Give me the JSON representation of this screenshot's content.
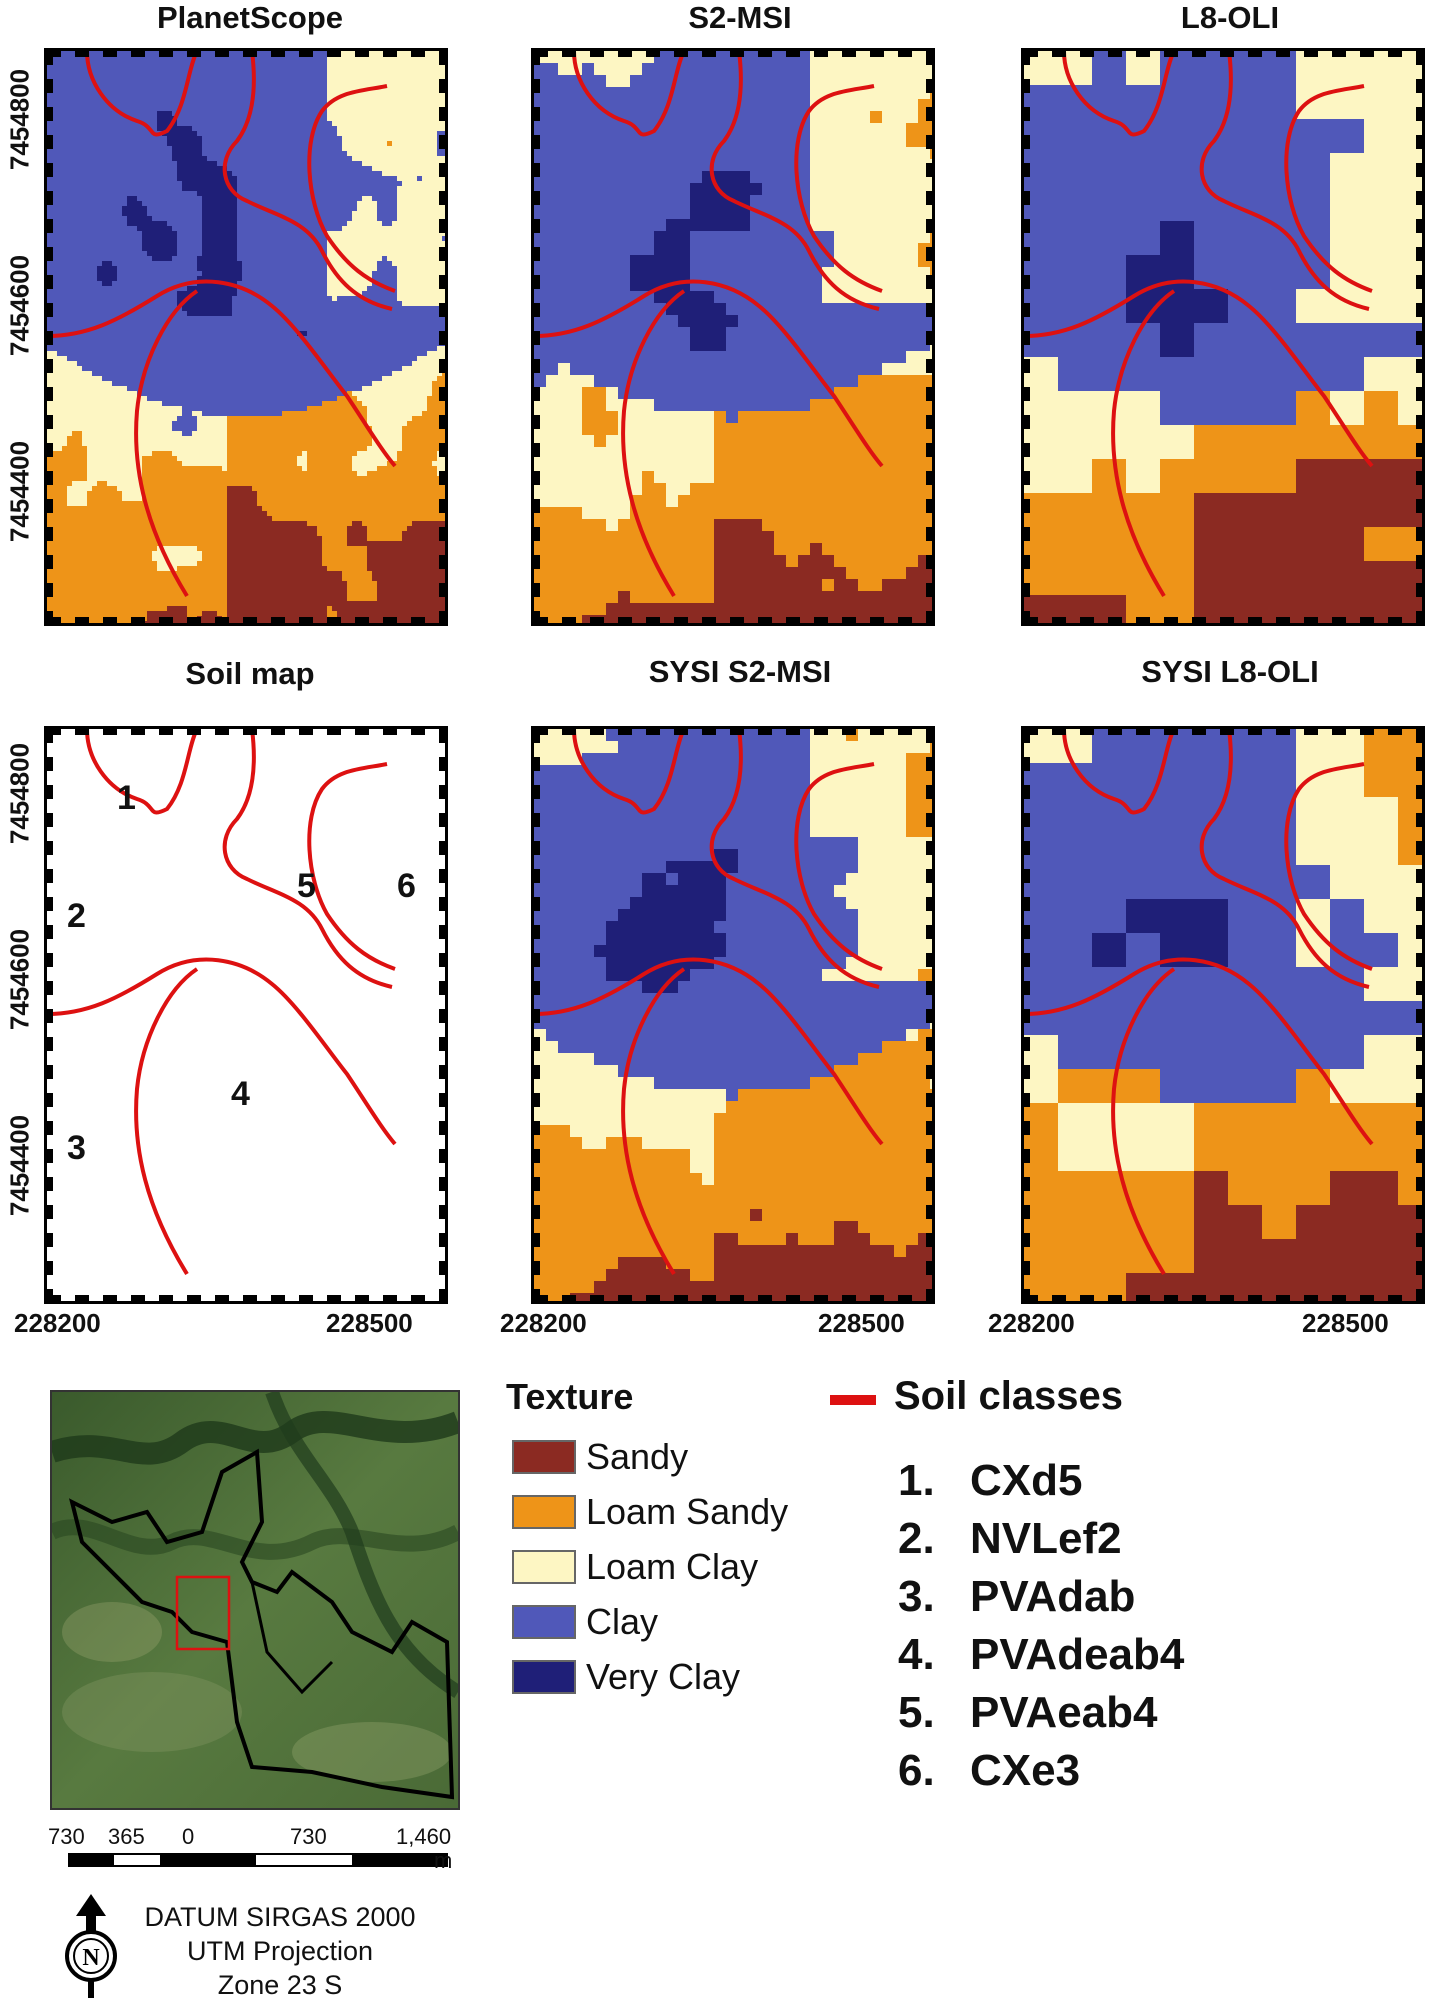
{
  "panels": [
    {
      "id": "planetscope",
      "title": "PlanetScope",
      "seed": 11,
      "res": 4
    },
    {
      "id": "s2msi",
      "title": "S2-MSI",
      "seed": 23,
      "res": 10
    },
    {
      "id": "l8oli",
      "title": "L8-OLI",
      "seed": 37,
      "res": 30
    },
    {
      "id": "soilmap",
      "title": "Soil map",
      "seed": 0,
      "res": 0
    },
    {
      "id": "sysi-s2",
      "title": "SYSI S2-MSI",
      "seed": 41,
      "res": 10
    },
    {
      "id": "sysi-l8",
      "title": "SYSI L8-OLI",
      "seed": 53,
      "res": 30
    }
  ],
  "axes": {
    "y_ticks": [
      "7454800",
      "7454600",
      "7454400"
    ],
    "x_ticks": [
      "228200",
      "228500"
    ]
  },
  "soil_map_labels": [
    "1",
    "2",
    "3",
    "4",
    "5",
    "6"
  ],
  "texture_legend": {
    "title": "Texture",
    "items": [
      {
        "label": "Sandy",
        "color": "#8b2a22"
      },
      {
        "label": "Loam Sandy",
        "color": "#ee9418"
      },
      {
        "label": "Loam Clay",
        "color": "#fdf6c3"
      },
      {
        "label": "Clay",
        "color": "#5058b9"
      },
      {
        "label": "Very Clay",
        "color": "#1f1f78"
      }
    ]
  },
  "soil_classes": {
    "title": "Soil classes",
    "line_color": "#dd1111",
    "items": [
      {
        "num": "1.",
        "code": "CXd5"
      },
      {
        "num": "2.",
        "code": "NVLef2"
      },
      {
        "num": "3.",
        "code": "PVAdab"
      },
      {
        "num": "4.",
        "code": "PVAdeab4"
      },
      {
        "num": "5.",
        "code": "PVAeab4"
      },
      {
        "num": "6.",
        "code": "CXe3"
      }
    ]
  },
  "scale_bar": {
    "labels": [
      "730",
      "365",
      "0",
      "730",
      "1,460"
    ],
    "unit": "m"
  },
  "projection": {
    "line1": "DATUM SIRGAS 2000",
    "line2": "UTM Projection",
    "line3": "Zone 23 S"
  },
  "north_arrow": {
    "icon": "north-arrow-icon",
    "letter": "N"
  }
}
